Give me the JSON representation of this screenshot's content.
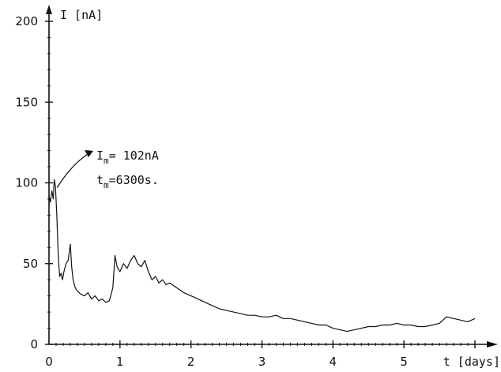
{
  "chart_data": {
    "type": "line",
    "ylabel": "I [nA]",
    "xlabel": "t [days]",
    "xlim": [
      0,
      6
    ],
    "ylim": [
      0,
      200
    ],
    "x_ticks": [
      0,
      1,
      2,
      3,
      4,
      5
    ],
    "y_ticks": [
      0,
      50,
      100,
      150,
      200
    ],
    "x_tick_labels": [
      "0",
      "1",
      "2",
      "3",
      "4",
      "5"
    ],
    "y_tick_labels": [
      "0",
      "50",
      "100",
      "150",
      "200"
    ],
    "grid": false,
    "annotation": {
      "line1": {
        "var": "I",
        "sub": "m",
        "text": "= 102nA"
      },
      "line2": {
        "var": "t",
        "sub": "m",
        "text": "=6300s."
      },
      "points_to": {
        "x": 0.07,
        "y": 100
      }
    },
    "series": [
      {
        "x": [
          0.0,
          0.02,
          0.04,
          0.06,
          0.073,
          0.09,
          0.11,
          0.13,
          0.15,
          0.17,
          0.19,
          0.21,
          0.24,
          0.27,
          0.3,
          0.32,
          0.34,
          0.37,
          0.4,
          0.45,
          0.5,
          0.55,
          0.6,
          0.65,
          0.7,
          0.75,
          0.8,
          0.85,
          0.9,
          0.93,
          0.96,
          1.0,
          1.05,
          1.1,
          1.15,
          1.2,
          1.25,
          1.3,
          1.35,
          1.4,
          1.45,
          1.5,
          1.55,
          1.6,
          1.65,
          1.7,
          1.8,
          1.9,
          2.0,
          2.1,
          2.2,
          2.3,
          2.4,
          2.5,
          2.6,
          2.7,
          2.8,
          2.9,
          3.0,
          3.1,
          3.2,
          3.3,
          3.4,
          3.5,
          3.6,
          3.7,
          3.8,
          3.9,
          4.0,
          4.1,
          4.2,
          4.3,
          4.4,
          4.5,
          4.6,
          4.7,
          4.8,
          4.9,
          5.0,
          5.1,
          5.2,
          5.3,
          5.4,
          5.5,
          5.6,
          5.7,
          5.8,
          5.9,
          6.0
        ],
        "values": [
          92,
          88,
          95,
          90,
          102,
          98,
          80,
          55,
          42,
          44,
          40,
          45,
          50,
          52,
          62,
          48,
          40,
          35,
          33,
          31,
          30,
          32,
          28,
          30,
          27,
          28,
          26,
          27,
          35,
          55,
          48,
          45,
          50,
          47,
          52,
          55,
          50,
          48,
          52,
          45,
          40,
          42,
          38,
          40,
          37,
          38,
          35,
          32,
          30,
          28,
          26,
          24,
          22,
          21,
          20,
          19,
          18,
          18,
          17,
          17,
          18,
          16,
          16,
          15,
          14,
          13,
          12,
          12,
          10,
          9,
          8,
          9,
          10,
          11,
          11,
          12,
          12,
          13,
          12,
          12,
          11,
          11,
          12,
          13,
          17,
          16,
          15,
          14,
          16
        ]
      }
    ]
  }
}
